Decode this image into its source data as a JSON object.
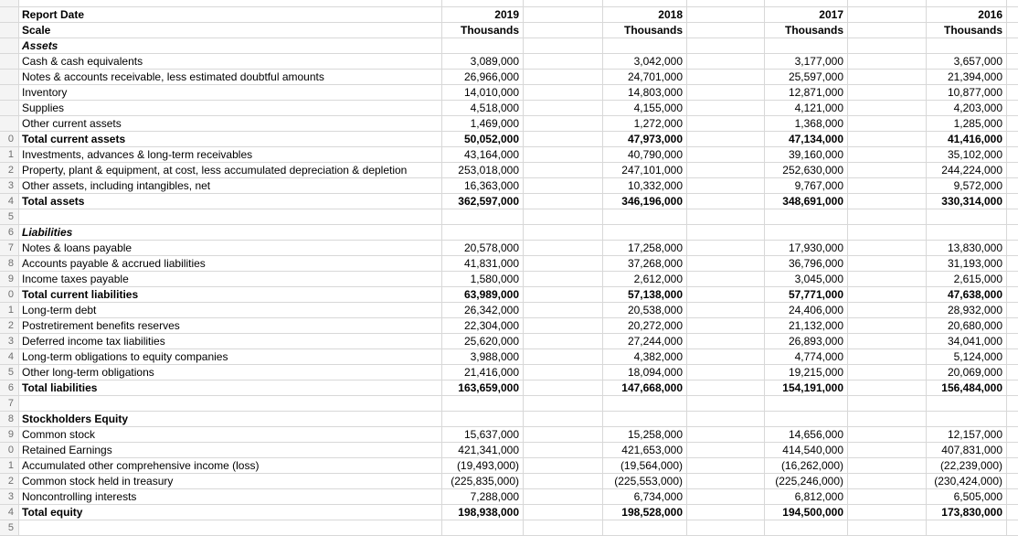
{
  "colors": {
    "background": "#ffffff",
    "gridline": "#d8d8d8",
    "cell_text": "#000000",
    "row_header_background": "#f4f4f4",
    "row_header_text": "#6e6e6e"
  },
  "sheet": {
    "year_columns": [
      "2019",
      "2018",
      "2017",
      "2016"
    ],
    "scale": "Thousands",
    "rows": [
      {
        "num": "",
        "label": "",
        "style": "normal",
        "values": [
          "",
          "",
          "",
          ""
        ]
      },
      {
        "num": "",
        "label": "Report Date",
        "style": "bold",
        "values": [
          "2019",
          "2018",
          "2017",
          "2016"
        ]
      },
      {
        "num": "",
        "label": "Scale",
        "style": "bold",
        "values": [
          "Thousands",
          "Thousands",
          "Thousands",
          "Thousands"
        ]
      },
      {
        "num": "",
        "label": "Assets",
        "style": "bold-italic",
        "values": [
          "",
          "",
          "",
          ""
        ]
      },
      {
        "num": "",
        "label": "Cash & cash equivalents",
        "style": "normal",
        "values": [
          "3,089,000",
          "3,042,000",
          "3,177,000",
          "3,657,000"
        ]
      },
      {
        "num": "",
        "label": "Notes & accounts receivable, less estimated doubtful amounts",
        "style": "normal",
        "values": [
          "26,966,000",
          "24,701,000",
          "25,597,000",
          "21,394,000"
        ]
      },
      {
        "num": "",
        "label": "Inventory",
        "style": "normal",
        "values": [
          "14,010,000",
          "14,803,000",
          "12,871,000",
          "10,877,000"
        ]
      },
      {
        "num": "",
        "label": "Supplies",
        "style": "normal",
        "values": [
          "4,518,000",
          "4,155,000",
          "4,121,000",
          "4,203,000"
        ]
      },
      {
        "num": "",
        "label": "Other current assets",
        "style": "normal",
        "values": [
          "1,469,000",
          "1,272,000",
          "1,368,000",
          "1,285,000"
        ]
      },
      {
        "num": "0",
        "label": "Total current assets",
        "style": "bold",
        "values": [
          "50,052,000",
          "47,973,000",
          "47,134,000",
          "41,416,000"
        ]
      },
      {
        "num": "1",
        "label": "Investments, advances & long-term receivables",
        "style": "normal",
        "values": [
          "43,164,000",
          "40,790,000",
          "39,160,000",
          "35,102,000"
        ]
      },
      {
        "num": "2",
        "label": "Property, plant & equipment, at cost, less accumulated depreciation & depletion",
        "style": "normal",
        "values": [
          "253,018,000",
          "247,101,000",
          "252,630,000",
          "244,224,000"
        ]
      },
      {
        "num": "3",
        "label": "Other assets, including intangibles, net",
        "style": "normal",
        "values": [
          "16,363,000",
          "10,332,000",
          "9,767,000",
          "9,572,000"
        ]
      },
      {
        "num": "4",
        "label": "Total assets",
        "style": "bold",
        "values": [
          "362,597,000",
          "346,196,000",
          "348,691,000",
          "330,314,000"
        ]
      },
      {
        "num": "5",
        "label": "",
        "style": "normal",
        "values": [
          "",
          "",
          "",
          ""
        ]
      },
      {
        "num": "6",
        "label": "Liabilities",
        "style": "bold-italic",
        "values": [
          "",
          "",
          "",
          ""
        ]
      },
      {
        "num": "7",
        "label": "Notes & loans payable",
        "style": "normal",
        "values": [
          "20,578,000",
          "17,258,000",
          "17,930,000",
          "13,830,000"
        ]
      },
      {
        "num": "8",
        "label": "Accounts payable & accrued liabilities",
        "style": "normal",
        "values": [
          "41,831,000",
          "37,268,000",
          "36,796,000",
          "31,193,000"
        ]
      },
      {
        "num": "9",
        "label": "Income taxes payable",
        "style": "normal",
        "values": [
          "1,580,000",
          "2,612,000",
          "3,045,000",
          "2,615,000"
        ]
      },
      {
        "num": "0",
        "label": "Total current liabilities",
        "style": "bold",
        "values": [
          "63,989,000",
          "57,138,000",
          "57,771,000",
          "47,638,000"
        ]
      },
      {
        "num": "1",
        "label": "Long-term debt",
        "style": "normal",
        "values": [
          "26,342,000",
          "20,538,000",
          "24,406,000",
          "28,932,000"
        ]
      },
      {
        "num": "2",
        "label": "Postretirement benefits reserves",
        "style": "normal",
        "values": [
          "22,304,000",
          "20,272,000",
          "21,132,000",
          "20,680,000"
        ]
      },
      {
        "num": "3",
        "label": "Deferred income tax liabilities",
        "style": "normal",
        "values": [
          "25,620,000",
          "27,244,000",
          "26,893,000",
          "34,041,000"
        ]
      },
      {
        "num": "4",
        "label": "Long-term obligations to equity companies",
        "style": "normal",
        "values": [
          "3,988,000",
          "4,382,000",
          "4,774,000",
          "5,124,000"
        ]
      },
      {
        "num": "5",
        "label": "Other long-term obligations",
        "style": "normal",
        "values": [
          "21,416,000",
          "18,094,000",
          "19,215,000",
          "20,069,000"
        ]
      },
      {
        "num": "6",
        "label": "Total liabilities",
        "style": "bold",
        "values": [
          "163,659,000",
          "147,668,000",
          "154,191,000",
          "156,484,000"
        ]
      },
      {
        "num": "7",
        "label": "",
        "style": "normal",
        "values": [
          "",
          "",
          "",
          ""
        ]
      },
      {
        "num": "8",
        "label": "Stockholders Equity",
        "style": "bold",
        "values": [
          "",
          "",
          "",
          ""
        ]
      },
      {
        "num": "9",
        "label": "Common stock",
        "style": "normal",
        "values": [
          "15,637,000",
          "15,258,000",
          "14,656,000",
          "12,157,000"
        ]
      },
      {
        "num": "0",
        "label": "Retained Earnings",
        "style": "normal",
        "values": [
          "421,341,000",
          "421,653,000",
          "414,540,000",
          "407,831,000"
        ]
      },
      {
        "num": "1",
        "label": "Accumulated other comprehensive income (loss)",
        "style": "normal",
        "values": [
          "(19,493,000)",
          "(19,564,000)",
          "(16,262,000)",
          "(22,239,000)"
        ]
      },
      {
        "num": "2",
        "label": "Common stock held in treasury",
        "style": "normal",
        "values": [
          "(225,835,000)",
          "(225,553,000)",
          "(225,246,000)",
          "(230,424,000)"
        ]
      },
      {
        "num": "3",
        "label": "Noncontrolling interests",
        "style": "normal",
        "values": [
          "7,288,000",
          "6,734,000",
          "6,812,000",
          "6,505,000"
        ]
      },
      {
        "num": "4",
        "label": "Total equity",
        "style": "bold",
        "values": [
          "198,938,000",
          "198,528,000",
          "194,500,000",
          "173,830,000"
        ]
      },
      {
        "num": "5",
        "label": "",
        "style": "normal",
        "values": [
          "",
          "",
          "",
          ""
        ]
      }
    ]
  }
}
